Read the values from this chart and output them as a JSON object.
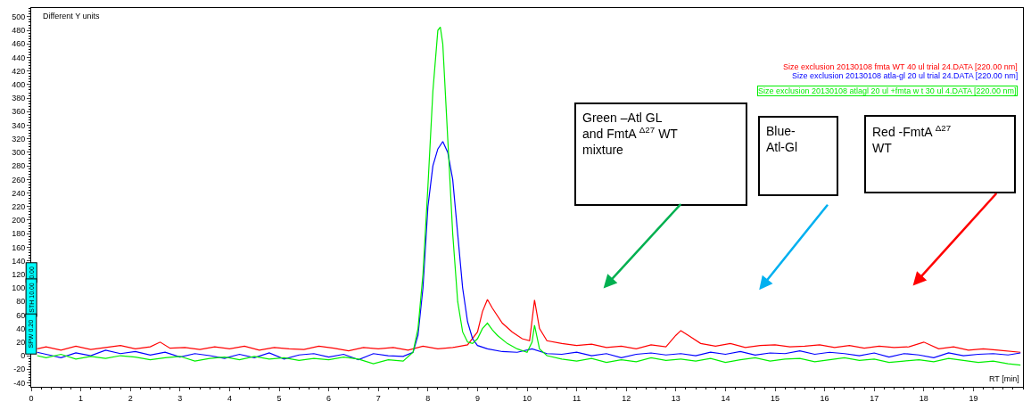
{
  "chart_data": {
    "type": "line",
    "ylabel": "Different Y units",
    "xlabel": "RT [min]",
    "xlim": [
      0,
      20
    ],
    "xticks": [
      0,
      1,
      2,
      3,
      4,
      5,
      6,
      7,
      8,
      9,
      10,
      11,
      12,
      13,
      14,
      15,
      16,
      17,
      18,
      19
    ],
    "ylim": [
      -46,
      513
    ],
    "yticks": [
      -40,
      -20,
      0,
      20,
      40,
      60,
      80,
      100,
      120,
      140,
      160,
      180,
      200,
      220,
      240,
      260,
      280,
      300,
      320,
      340,
      360,
      380,
      400,
      420,
      440,
      460,
      480,
      500
    ],
    "annotations": [
      "Green –Atl GL\nand FmtA $^{Δ27}$ WT\nmixture",
      "Blue-\nAtl-Gl",
      "Red -FmtA $^{Δ27}$\nWT",
      "0.00",
      "STH 10.00",
      "SPW 0.20"
    ],
    "series": [
      {
        "name": "Size exclusion 20130108 fmta WT 40 ul trial 24.DATA [220.00 nm]",
        "color": "#ff0000",
        "x": [
          0.12,
          0.3,
          0.6,
          0.9,
          1.2,
          1.5,
          1.8,
          2.1,
          2.4,
          2.6,
          2.8,
          3.1,
          3.4,
          3.7,
          4.0,
          4.3,
          4.6,
          4.9,
          5.2,
          5.5,
          5.8,
          6.1,
          6.4,
          6.7,
          7.0,
          7.3,
          7.6,
          7.9,
          8.2,
          8.5,
          8.8,
          9.0,
          9.1,
          9.2,
          9.3,
          9.5,
          9.7,
          9.9,
          10.05,
          10.15,
          10.25,
          10.4,
          10.7,
          11.0,
          11.3,
          11.6,
          11.9,
          12.2,
          12.5,
          12.8,
          13.0,
          13.1,
          13.25,
          13.5,
          13.8,
          14.1,
          14.4,
          14.7,
          15.0,
          15.3,
          15.6,
          15.9,
          16.2,
          16.5,
          16.8,
          17.1,
          17.4,
          17.7,
          18.0,
          18.3,
          18.6,
          18.9,
          19.2,
          19.5,
          19.95
        ],
        "values": [
          10,
          13,
          8,
          14,
          9,
          12,
          15,
          10,
          13,
          20,
          11,
          12,
          9,
          13,
          10,
          14,
          8,
          12,
          10,
          9,
          14,
          11,
          7,
          12,
          10,
          12,
          8,
          14,
          10,
          12,
          16,
          35,
          65,
          83,
          70,
          48,
          35,
          25,
          22,
          82,
          40,
          22,
          18,
          15,
          17,
          12,
          14,
          10,
          16,
          13,
          30,
          37,
          30,
          18,
          14,
          18,
          12,
          15,
          16,
          13,
          14,
          16,
          12,
          15,
          11,
          14,
          12,
          13,
          20,
          10,
          13,
          8,
          10,
          8,
          5
        ]
      },
      {
        "name": "Size exclusion 20130108 atla-gl 20 ul trial 24.DATA [220.00 nm]",
        "color": "#0000ff",
        "x": [
          0.12,
          0.3,
          0.6,
          0.9,
          1.2,
          1.5,
          1.8,
          2.1,
          2.4,
          2.7,
          3.0,
          3.3,
          3.6,
          3.9,
          4.2,
          4.5,
          4.8,
          5.1,
          5.4,
          5.7,
          6.0,
          6.3,
          6.6,
          6.9,
          7.2,
          7.5,
          7.7,
          7.8,
          7.9,
          8.0,
          8.1,
          8.2,
          8.3,
          8.4,
          8.5,
          8.6,
          8.7,
          8.8,
          8.9,
          9.0,
          9.2,
          9.5,
          9.8,
          10.1,
          10.4,
          10.7,
          11.0,
          11.3,
          11.6,
          11.9,
          12.2,
          12.5,
          12.8,
          13.1,
          13.4,
          13.7,
          14.0,
          14.3,
          14.6,
          14.9,
          15.2,
          15.5,
          15.8,
          16.1,
          16.4,
          16.7,
          17.0,
          17.3,
          17.6,
          17.9,
          18.2,
          18.5,
          18.8,
          19.1,
          19.4,
          19.7,
          19.95
        ],
        "values": [
          5,
          2,
          -3,
          4,
          0,
          8,
          3,
          6,
          1,
          5,
          -2,
          3,
          0,
          -4,
          2,
          -3,
          4,
          -5,
          1,
          3,
          -2,
          2,
          -6,
          3,
          0,
          -1,
          5,
          30,
          100,
          220,
          280,
          305,
          316,
          300,
          260,
          180,
          100,
          50,
          25,
          15,
          10,
          6,
          5,
          10,
          3,
          2,
          5,
          0,
          3,
          -3,
          2,
          4,
          1,
          3,
          0,
          5,
          2,
          6,
          1,
          4,
          3,
          7,
          2,
          5,
          3,
          0,
          4,
          -2,
          3,
          1,
          -3,
          4,
          0,
          2,
          3,
          1,
          4
        ]
      },
      {
        "name": "Size exclusion 20130108 atlagl 20 ul +fmta w t 30 ul 4.DATA [220.00 nm]",
        "color": "#00ee00",
        "x": [
          0.12,
          0.3,
          0.6,
          0.9,
          1.2,
          1.5,
          1.8,
          2.1,
          2.4,
          2.7,
          3.0,
          3.3,
          3.6,
          3.9,
          4.2,
          4.5,
          4.8,
          5.1,
          5.4,
          5.7,
          6.0,
          6.3,
          6.6,
          6.9,
          7.2,
          7.5,
          7.7,
          7.8,
          7.9,
          8.0,
          8.1,
          8.2,
          8.25,
          8.3,
          8.4,
          8.5,
          8.6,
          8.7,
          8.8,
          8.9,
          9.0,
          9.1,
          9.2,
          9.3,
          9.4,
          9.6,
          9.8,
          10.0,
          10.1,
          10.15,
          10.25,
          10.4,
          10.7,
          11.0,
          11.3,
          11.6,
          11.9,
          12.2,
          12.5,
          12.8,
          13.1,
          13.4,
          13.7,
          14.0,
          14.3,
          14.6,
          14.9,
          15.2,
          15.5,
          15.8,
          16.1,
          16.4,
          16.7,
          17.0,
          17.3,
          17.6,
          17.9,
          18.2,
          18.5,
          18.8,
          19.1,
          19.4,
          19.7,
          19.95
        ],
        "values": [
          0,
          -3,
          2,
          -5,
          -1,
          -4,
          0,
          -2,
          -6,
          -3,
          -1,
          -8,
          -4,
          -2,
          -6,
          -1,
          -5,
          -3,
          -7,
          -4,
          -6,
          -2,
          -5,
          -12,
          -6,
          -8,
          5,
          40,
          120,
          250,
          390,
          480,
          485,
          460,
          320,
          180,
          80,
          35,
          20,
          18,
          25,
          40,
          48,
          38,
          30,
          18,
          10,
          5,
          20,
          45,
          10,
          0,
          -5,
          -8,
          -4,
          -10,
          -6,
          -9,
          -3,
          -7,
          -5,
          -8,
          -4,
          -10,
          -6,
          -3,
          -8,
          -5,
          -4,
          -9,
          -6,
          -3,
          -7,
          -5,
          -10,
          -8,
          -6,
          -9,
          -4,
          -7,
          -10,
          -8,
          -12,
          -14
        ]
      }
    ]
  }
}
